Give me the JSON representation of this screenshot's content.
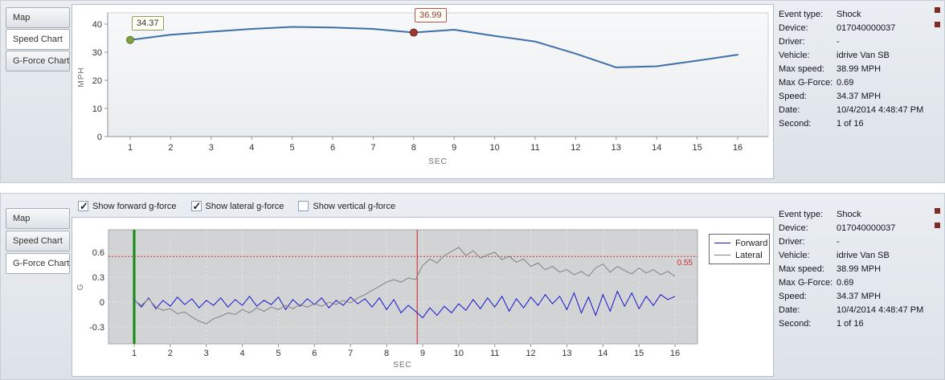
{
  "colors": {
    "panel_background": "#e3e7ec",
    "speed_line": "#3f6fa8",
    "forward_series": "#1515cc",
    "lateral_series": "#808080",
    "start_marker_green": "#7fa03f",
    "trigger_marker_red": "#9c3b36",
    "threshold_red": "#cc3333",
    "gforce_plot_background": "#d2d3d5",
    "corner_square": "#7d2b23"
  },
  "event_info": {
    "rows": [
      {
        "label": "Event type:",
        "value": "Shock"
      },
      {
        "label": "Device:",
        "value": "017040000037"
      },
      {
        "label": "Driver:",
        "value": "-"
      },
      {
        "label": "Vehicle:",
        "value": "idrive Van SB"
      },
      {
        "label": "Max speed:",
        "value": "38.99 MPH"
      },
      {
        "label": "Max G-Force:",
        "value": "0.69"
      },
      {
        "label": "Speed:",
        "value": "34.37 MPH"
      },
      {
        "label": "Date:",
        "value": "10/4/2014 4:48:47 PM"
      },
      {
        "label": "Second:",
        "value": "1 of 16"
      }
    ]
  },
  "panels": {
    "top": {
      "tabs": [
        {
          "label": "Map",
          "selected": false
        },
        {
          "label": "Speed Chart",
          "selected": true
        },
        {
          "label": "G-Force Chart",
          "selected": false
        }
      ]
    },
    "bottom": {
      "tabs": [
        {
          "label": "Map",
          "selected": false
        },
        {
          "label": "Speed Chart",
          "selected": false
        },
        {
          "label": "G-Force Chart",
          "selected": true
        }
      ],
      "checkboxes": [
        {
          "label": "Show forward g-force",
          "checked": true
        },
        {
          "label": "Show lateral g-force",
          "checked": true
        },
        {
          "label": "Show vertical g-force",
          "checked": false
        }
      ]
    }
  },
  "chart_data": [
    {
      "type": "line",
      "title": "Speed Chart",
      "xlabel": "SEC",
      "ylabel": "MPH",
      "ylim": [
        0,
        40
      ],
      "yticks": [
        0,
        10,
        20,
        30,
        40
      ],
      "x": [
        1,
        2,
        3,
        4,
        5,
        6,
        7,
        8,
        9,
        10,
        11,
        12,
        13,
        14,
        15,
        16
      ],
      "values": [
        34.37,
        36.2,
        37.3,
        38.3,
        38.99,
        38.8,
        38.3,
        36.99,
        38.0,
        35.8,
        33.8,
        29.5,
        24.6,
        25.0,
        27.0,
        29.1
      ],
      "line_color": "#3f6fa8",
      "markers": [
        {
          "x": 1,
          "y": 34.37,
          "label": "34.37",
          "color": "#7fa03f",
          "border": "#5c7a2a"
        },
        {
          "x": 8,
          "y": 36.99,
          "label": "36.99",
          "color": "#9c3b36",
          "border": "#6e2522"
        }
      ]
    },
    {
      "type": "line",
      "title": "G-Force Chart",
      "xlabel": "SEC",
      "ylabel": "G",
      "ylim": [
        -0.5,
        0.87
      ],
      "yticks": [
        -0.3,
        0,
        0.3,
        0.6
      ],
      "xticks": [
        1,
        2,
        3,
        4,
        5,
        6,
        7,
        8,
        9,
        10,
        11,
        12,
        13,
        14,
        15,
        16
      ],
      "threshold": {
        "y": 0.55,
        "label": "0.55",
        "color": "#cc3333"
      },
      "vlines": [
        {
          "x": 1,
          "color": "#0f8a0f",
          "width": 3
        },
        {
          "x": 8.85,
          "color": "#cc2222",
          "width": 1
        }
      ],
      "x_start": 1,
      "x_step": 0.2,
      "legend_position": "right",
      "series": [
        {
          "name": "Forward",
          "color": "#1515cc",
          "values": [
            0.03,
            -0.06,
            0.05,
            -0.08,
            0.02,
            -0.05,
            0.06,
            -0.03,
            0.04,
            -0.07,
            0.02,
            -0.04,
            0.05,
            -0.06,
            0.03,
            -0.04,
            0.07,
            -0.05,
            0.02,
            -0.03,
            0.06,
            -0.09,
            0.03,
            -0.05,
            0.04,
            -0.03,
            0.05,
            -0.07,
            0.02,
            -0.04,
            0.06,
            -0.02,
            0.04,
            -0.06,
            0.05,
            -0.09,
            0.03,
            -0.13,
            -0.04,
            -0.11,
            -0.19,
            -0.07,
            -0.16,
            -0.05,
            -0.13,
            -0.02,
            -0.1,
            0.03,
            -0.08,
            0.05,
            -0.06,
            0.07,
            -0.11,
            0.04,
            -0.07,
            0.06,
            -0.04,
            0.09,
            -0.02,
            0.07,
            -0.09,
            0.11,
            -0.13,
            0.06,
            -0.16,
            0.09,
            -0.11,
            0.13,
            -0.05,
            0.11,
            -0.08,
            0.07,
            -0.04,
            0.09,
            0.03,
            0.07
          ]
        },
        {
          "name": "Lateral",
          "color": "#808080",
          "values": [
            0.02,
            -0.04,
            0.04,
            -0.06,
            -0.1,
            -0.08,
            -0.14,
            -0.12,
            -0.18,
            -0.23,
            -0.26,
            -0.2,
            -0.17,
            -0.13,
            -0.15,
            -0.09,
            -0.13,
            -0.07,
            -0.11,
            -0.06,
            -0.09,
            -0.04,
            -0.08,
            -0.03,
            -0.06,
            -0.02,
            -0.05,
            0.0,
            -0.03,
            0.02,
            -0.01,
            0.05,
            0.09,
            0.14,
            0.19,
            0.24,
            0.27,
            0.24,
            0.29,
            0.27,
            0.44,
            0.52,
            0.47,
            0.56,
            0.61,
            0.66,
            0.56,
            0.62,
            0.53,
            0.57,
            0.6,
            0.51,
            0.55,
            0.48,
            0.52,
            0.43,
            0.47,
            0.39,
            0.43,
            0.36,
            0.39,
            0.33,
            0.37,
            0.31,
            0.41,
            0.46,
            0.36,
            0.43,
            0.38,
            0.34,
            0.41,
            0.35,
            0.39,
            0.33,
            0.37,
            0.31
          ]
        }
      ]
    }
  ]
}
